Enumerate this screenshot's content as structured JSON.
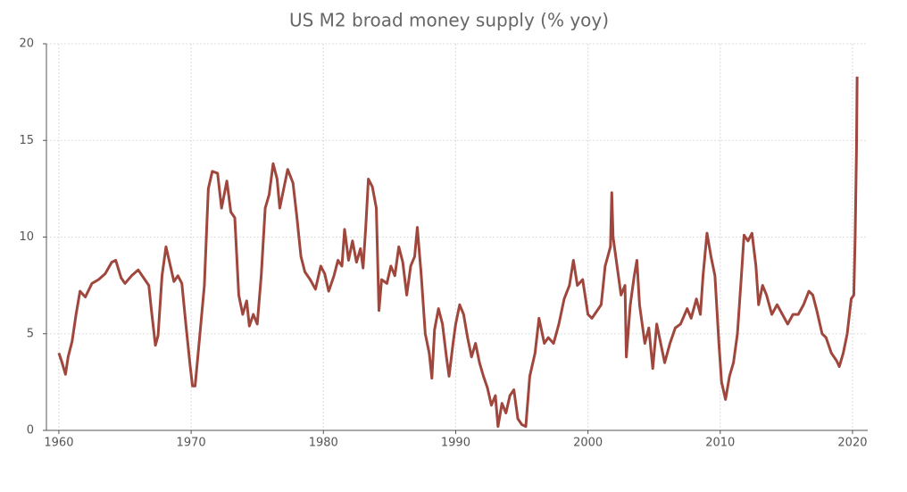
{
  "chart_data": {
    "type": "line",
    "title": "US M2 broad money supply (% yoy)",
    "series": [
      {
        "name": "M2",
        "color": "#a0473d",
        "x": [
          1960.0,
          1960.2,
          1960.5,
          1960.7,
          1961.0,
          1961.3,
          1961.6,
          1962.0,
          1962.5,
          1963.0,
          1963.5,
          1964.0,
          1964.3,
          1964.7,
          1965.0,
          1965.5,
          1966.0,
          1966.4,
          1966.8,
          1967.0,
          1967.3,
          1967.5,
          1967.8,
          1968.1,
          1968.4,
          1968.7,
          1969.0,
          1969.3,
          1969.6,
          1969.9,
          1970.1,
          1970.3,
          1970.6,
          1971.0,
          1971.3,
          1971.6,
          1972.0,
          1972.3,
          1972.7,
          1973.0,
          1973.3,
          1973.6,
          1973.9,
          1974.2,
          1974.4,
          1974.7,
          1975.0,
          1975.3,
          1975.6,
          1975.9,
          1976.2,
          1976.5,
          1976.7,
          1977.0,
          1977.3,
          1977.7,
          1978.0,
          1978.3,
          1978.6,
          1979.0,
          1979.4,
          1979.8,
          1980.1,
          1980.4,
          1980.8,
          1981.1,
          1981.4,
          1981.6,
          1981.9,
          1982.2,
          1982.5,
          1982.8,
          1983.0,
          1983.2,
          1983.4,
          1983.7,
          1984.0,
          1984.2,
          1984.4,
          1984.8,
          1985.1,
          1985.4,
          1985.7,
          1986.0,
          1986.3,
          1986.6,
          1986.9,
          1987.1,
          1987.4,
          1987.7,
          1988.0,
          1988.2,
          1988.4,
          1988.7,
          1989.0,
          1989.3,
          1989.5,
          1989.8,
          1990.0,
          1990.3,
          1990.6,
          1990.9,
          1991.2,
          1991.5,
          1991.8,
          1992.1,
          1992.4,
          1992.7,
          1993.0,
          1993.2,
          1993.5,
          1993.8,
          1994.1,
          1994.4,
          1994.7,
          1995.0,
          1995.3,
          1995.6,
          1996.0,
          1996.3,
          1996.7,
          1997.0,
          1997.4,
          1997.8,
          1998.2,
          1998.6,
          1998.9,
          1999.2,
          1999.6,
          2000.0,
          2000.3,
          2000.7,
          2001.0,
          2001.3,
          2001.7,
          2001.8,
          2001.9,
          2002.2,
          2002.5,
          2002.8,
          2002.9,
          2003.2,
          2003.5,
          2003.7,
          2003.9,
          2004.3,
          2004.6,
          2004.9,
          2005.2,
          2005.5,
          2005.8,
          2006.2,
          2006.6,
          2007.0,
          2007.5,
          2007.8,
          2008.2,
          2008.5,
          2008.7,
          2009.0,
          2009.3,
          2009.6,
          2009.9,
          2010.1,
          2010.4,
          2010.7,
          2011.0,
          2011.3,
          2011.6,
          2011.8,
          2012.1,
          2012.4,
          2012.7,
          2012.9,
          2013.2,
          2013.5,
          2013.9,
          2014.3,
          2014.7,
          2015.1,
          2015.5,
          2015.9,
          2016.3,
          2016.7,
          2017.0,
          2017.3,
          2017.7,
          2018.0,
          2018.4,
          2018.8,
          2019.0,
          2019.3,
          2019.6,
          2019.9,
          2020.1,
          2020.2,
          2020.3,
          2020.35
        ],
        "values": [
          4.0,
          3.6,
          2.9,
          3.8,
          4.6,
          6.0,
          7.2,
          6.9,
          7.6,
          7.8,
          8.1,
          8.7,
          8.8,
          7.9,
          7.6,
          8.0,
          8.3,
          7.9,
          7.5,
          6.2,
          4.4,
          4.9,
          8.0,
          9.5,
          8.6,
          7.7,
          8.0,
          7.6,
          5.5,
          3.5,
          2.3,
          2.3,
          4.5,
          7.5,
          12.5,
          13.4,
          13.3,
          11.5,
          12.9,
          11.3,
          11.0,
          7.0,
          6.0,
          6.7,
          5.4,
          6.0,
          5.5,
          8.0,
          11.5,
          12.2,
          13.8,
          13.0,
          11.5,
          12.5,
          13.5,
          12.8,
          11.0,
          9.0,
          8.2,
          7.8,
          7.3,
          8.5,
          8.1,
          7.2,
          8.0,
          8.8,
          8.5,
          10.4,
          8.8,
          9.8,
          8.7,
          9.4,
          8.4,
          10.5,
          13.0,
          12.6,
          11.5,
          6.2,
          7.8,
          7.6,
          8.5,
          8.0,
          9.5,
          8.7,
          7.0,
          8.5,
          9.0,
          10.5,
          8.0,
          5.0,
          4.0,
          2.7,
          5.2,
          6.3,
          5.5,
          3.8,
          2.8,
          4.5,
          5.5,
          6.5,
          6.0,
          4.8,
          3.8,
          4.5,
          3.5,
          2.8,
          2.2,
          1.3,
          1.8,
          0.2,
          1.4,
          0.9,
          1.8,
          2.1,
          0.6,
          0.3,
          0.2,
          2.8,
          4.0,
          5.8,
          4.5,
          4.8,
          4.5,
          5.5,
          6.8,
          7.5,
          8.8,
          7.5,
          7.8,
          6.0,
          5.8,
          6.2,
          6.5,
          8.5,
          9.5,
          12.3,
          10.0,
          8.5,
          7.0,
          7.5,
          3.8,
          6.5,
          8.0,
          8.8,
          6.5,
          4.5,
          5.3,
          3.2,
          5.5,
          4.5,
          3.5,
          4.5,
          5.3,
          5.5,
          6.3,
          5.8,
          6.8,
          6.0,
          8.0,
          10.2,
          9.0,
          8.0,
          4.5,
          2.5,
          1.6,
          2.8,
          3.5,
          5.0,
          8.0,
          10.1,
          9.8,
          10.2,
          8.5,
          6.5,
          7.5,
          7.0,
          6.0,
          6.5,
          6.0,
          5.5,
          6.0,
          6.0,
          6.5,
          7.2,
          7.0,
          6.2,
          5.0,
          4.8,
          4.0,
          3.6,
          3.3,
          4.0,
          5.0,
          6.8,
          7.0,
          10.0,
          14.5,
          18.3
        ]
      }
    ],
    "xlim": [
      1959.06,
      2021.15
    ],
    "xticks": [
      1960,
      1970,
      1980,
      1990,
      2000,
      2010,
      2020
    ],
    "ylim": [
      0,
      20
    ],
    "yticks": [
      0,
      5,
      10,
      15,
      20
    ],
    "grid": true
  }
}
